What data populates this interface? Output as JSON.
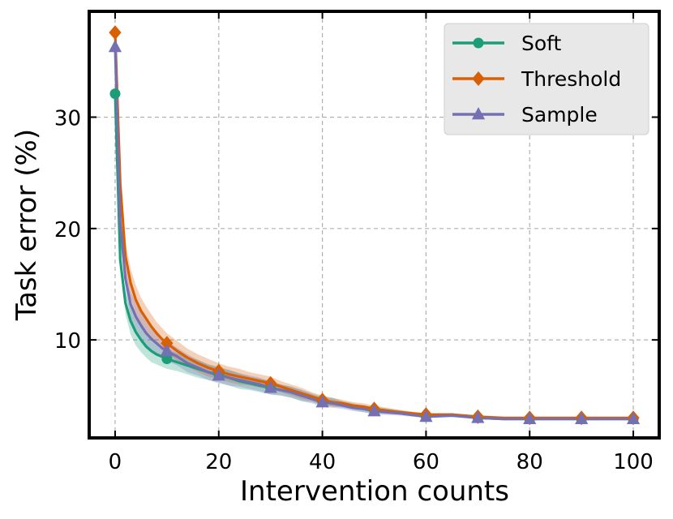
{
  "chart_data": {
    "type": "line",
    "title": "",
    "xlabel": "Intervention counts",
    "ylabel": "Task error (%)",
    "xlim": [
      -5,
      105
    ],
    "ylim": [
      1.2,
      39.5
    ],
    "xticks": [
      0,
      20,
      40,
      60,
      80,
      100
    ],
    "yticks": [
      10,
      20,
      30
    ],
    "grid": true,
    "legend_position": "top-right",
    "series": [
      {
        "name": "Soft",
        "color": "#1b9e77",
        "marker": "circle",
        "x": [
          0,
          1,
          2,
          3,
          4,
          5,
          6,
          7,
          8,
          9,
          10,
          12,
          14,
          16,
          18,
          20,
          22,
          24,
          26,
          28,
          30,
          32,
          34,
          36,
          38,
          40,
          42,
          44,
          46,
          48,
          50,
          55,
          60,
          65,
          70,
          75,
          80,
          85,
          90,
          95,
          100
        ],
        "y": [
          32.1,
          17.2,
          13.3,
          11.7,
          10.7,
          10.0,
          9.4,
          9.0,
          8.7,
          8.5,
          8.3,
          8.0,
          7.7,
          7.4,
          7.1,
          6.9,
          6.6,
          6.3,
          6.1,
          5.9,
          5.7,
          5.5,
          5.3,
          5.0,
          4.8,
          4.5,
          4.4,
          4.2,
          4.0,
          3.8,
          3.7,
          3.5,
          3.1,
          3.3,
          3.0,
          2.9,
          2.9,
          2.9,
          2.9,
          2.9,
          2.9
        ],
        "band": [
          0,
          0,
          1.0,
          1.2,
          1.2,
          1.1,
          1.0,
          1.0,
          0.9,
          0.9,
          0.9,
          0.8,
          0.8,
          0.8,
          0.7,
          0.7,
          0.7,
          0.7,
          0.6,
          0.6,
          0.6,
          0.5,
          0.5,
          0.5,
          0.4,
          0.4,
          0.4,
          0.3,
          0.3,
          0.3,
          0.3,
          0.2,
          0.1,
          0.1,
          0.1,
          0,
          0,
          0,
          0,
          0,
          0
        ],
        "marker_x": [
          0,
          10,
          20,
          30,
          40,
          50,
          60,
          70,
          80,
          90,
          100
        ]
      },
      {
        "name": "Threshold",
        "color": "#d95f02",
        "marker": "diamond",
        "x": [
          0,
          1,
          2,
          3,
          4,
          5,
          6,
          7,
          8,
          9,
          10,
          12,
          14,
          16,
          18,
          20,
          22,
          24,
          26,
          28,
          30,
          32,
          34,
          36,
          38,
          40,
          42,
          44,
          46,
          48,
          50,
          55,
          60,
          65,
          70,
          75,
          80,
          85,
          90,
          95,
          100
        ],
        "y": [
          37.6,
          24.0,
          17.5,
          15.1,
          13.6,
          12.6,
          11.9,
          11.2,
          10.6,
          10.1,
          9.7,
          9.0,
          8.4,
          7.9,
          7.5,
          7.2,
          6.9,
          6.7,
          6.5,
          6.3,
          6.1,
          5.8,
          5.5,
          5.2,
          4.9,
          4.6,
          4.4,
          4.3,
          4.1,
          4.0,
          3.8,
          3.5,
          3.3,
          3.3,
          3.1,
          3.0,
          3.0,
          3.0,
          3.0,
          3.0,
          3.0
        ],
        "band": [
          0,
          0,
          1.2,
          1.3,
          1.3,
          1.2,
          1.1,
          1.1,
          1.0,
          1.0,
          0.9,
          0.9,
          0.8,
          0.8,
          0.8,
          0.7,
          0.7,
          0.7,
          0.6,
          0.6,
          0.6,
          0.5,
          0.5,
          0.5,
          0.4,
          0.4,
          0.4,
          0.3,
          0.3,
          0.3,
          0.3,
          0.2,
          0.1,
          0.1,
          0.1,
          0,
          0,
          0,
          0,
          0,
          0
        ],
        "marker_x": [
          0,
          10,
          20,
          30,
          40,
          50,
          60,
          70,
          80,
          90,
          100
        ]
      },
      {
        "name": "Sample",
        "color": "#7570b3",
        "marker": "triangle",
        "x": [
          0,
          1,
          2,
          3,
          4,
          5,
          6,
          7,
          8,
          9,
          10,
          12,
          14,
          16,
          18,
          20,
          22,
          24,
          26,
          28,
          30,
          32,
          34,
          36,
          38,
          40,
          42,
          44,
          46,
          48,
          50,
          55,
          60,
          65,
          70,
          75,
          80,
          85,
          90,
          95,
          100
        ],
        "y": [
          36.3,
          20.5,
          15.5,
          13.2,
          12.1,
          11.3,
          10.6,
          10.1,
          9.7,
          9.3,
          9.0,
          8.5,
          7.9,
          7.5,
          7.1,
          6.8,
          6.6,
          6.4,
          6.2,
          6.0,
          5.7,
          5.5,
          5.3,
          5.0,
          4.7,
          4.4,
          4.3,
          4.1,
          3.9,
          3.8,
          3.6,
          3.4,
          3.1,
          3.2,
          3.0,
          2.9,
          2.9,
          2.9,
          2.9,
          2.9,
          2.9
        ],
        "band": [
          0,
          0,
          1.1,
          1.2,
          1.2,
          1.1,
          1.1,
          1.0,
          1.0,
          0.9,
          0.9,
          0.8,
          0.8,
          0.7,
          0.7,
          0.7,
          0.7,
          0.6,
          0.6,
          0.6,
          0.6,
          0.5,
          0.5,
          0.5,
          0.4,
          0.4,
          0.4,
          0.3,
          0.3,
          0.3,
          0.3,
          0.2,
          0.1,
          0.1,
          0.1,
          0,
          0,
          0,
          0,
          0,
          0
        ],
        "marker_x": [
          0,
          10,
          20,
          30,
          40,
          50,
          60,
          70,
          80,
          90,
          100
        ]
      }
    ]
  }
}
